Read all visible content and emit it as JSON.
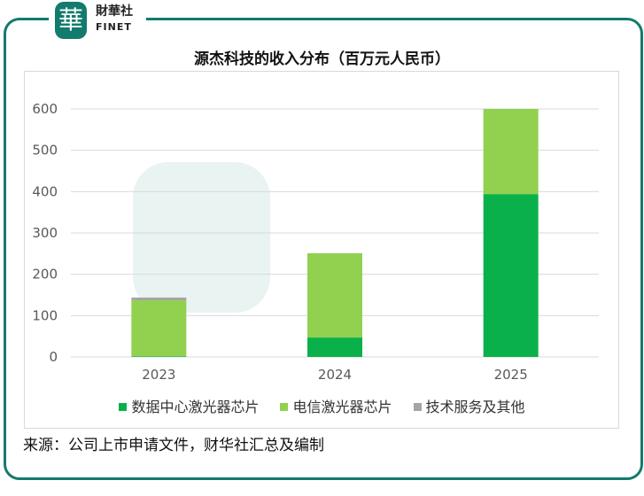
{
  "brand": {
    "logo_glyph": "華",
    "name_cn": "財華社",
    "name_en": "FINET",
    "color": "#137a6e"
  },
  "chart_data": {
    "type": "bar",
    "stacked": true,
    "title": "源杰科技的收入分布（百万元人民币）",
    "categories": [
      "2023",
      "2024",
      "2025"
    ],
    "series": [
      {
        "name": "数据中心激光器芯片",
        "color": "#0ab14b",
        "values": [
          1.6,
          47,
          394
        ]
      },
      {
        "name": "电信激光器芯片",
        "color": "#92d050",
        "values": [
          135.5,
          204,
          206
        ]
      },
      {
        "name": "技术服务及其他",
        "color": "#a5a5a5",
        "values": [
          6.6,
          0,
          0
        ]
      }
    ],
    "ylim": [
      0,
      600
    ],
    "yticks": [
      "0",
      "100",
      "200",
      "300",
      "400",
      "500",
      "600"
    ],
    "grid": true,
    "legend_position": "bottom"
  },
  "source": "来源：公司上市申请文件，财华社汇总及编制"
}
